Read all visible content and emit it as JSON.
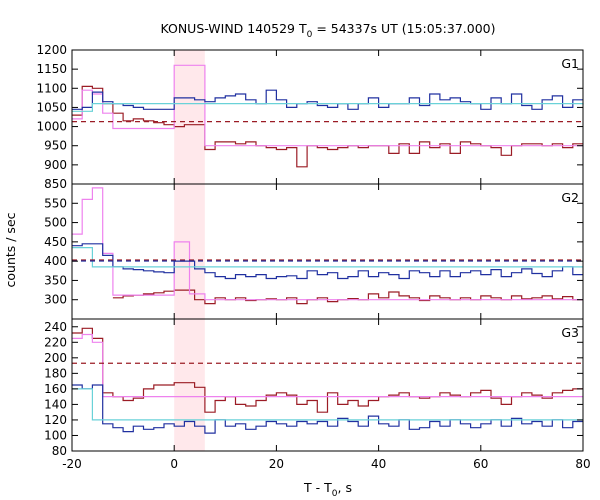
{
  "chart_data": {
    "type": "line",
    "title_main": "KONUS-WIND 140529 T",
    "title_sub": "0",
    "title_rest": " = 54337s UT (15:05:37.000)",
    "xlabel_main": "T - T",
    "xlabel_sub": "0",
    "xlabel_rest": ", s",
    "ylabel": "counts / sec",
    "xlim": [
      -20,
      80
    ],
    "x_ticks": [
      "-20",
      "0",
      "20",
      "40",
      "60",
      "80"
    ],
    "highlight_interval": [
      0,
      6
    ],
    "panels": [
      {
        "label": "G1",
        "ylim": [
          850,
          1200
        ],
        "y_ticks": [
          "850",
          "900",
          "950",
          "1000",
          "1050",
          "1100",
          "1150",
          "1200"
        ],
        "background_level": 1057,
        "threshold_level": 1013,
        "series": [
          {
            "color": "#9b1c25",
            "edges": [
              -20,
              -18,
              -16,
              -14,
              -12,
              -10,
              -8,
              -6,
              -4,
              -2,
              0,
              2,
              4,
              6,
              8,
              10,
              12,
              14,
              16,
              18,
              20,
              22,
              24,
              26,
              28,
              30,
              32,
              34,
              36,
              38,
              40,
              42,
              44,
              46,
              48,
              50,
              52,
              54,
              56,
              58,
              60,
              62,
              64,
              66,
              68,
              70,
              72,
              74,
              76,
              78,
              80
            ],
            "values": [
              1030,
              1105,
              1100,
              1060,
              1035,
              1015,
              1020,
              1015,
              1010,
              1005,
              1000,
              1005,
              1005,
              940,
              960,
              960,
              955,
              960,
              950,
              945,
              940,
              945,
              895,
              950,
              945,
              940,
              945,
              950,
              945,
              950,
              950,
              930,
              955,
              930,
              960,
              945,
              955,
              930,
              960,
              955,
              950,
              945,
              925,
              950,
              955,
              955,
              950,
              955,
              945,
              955
            ]
          },
          {
            "color": "#ee82ee",
            "edges": [
              -20,
              -18,
              -16,
              -14,
              -12,
              0,
              6,
              80
            ],
            "values": [
              1020,
              1095,
              1085,
              1035,
              995,
              1160,
              950,
              950
            ]
          },
          {
            "color": "#2030a0",
            "edges": [
              -20,
              -18,
              -16,
              -14,
              -12,
              -10,
              -8,
              -6,
              -4,
              -2,
              0,
              2,
              4,
              6,
              8,
              10,
              12,
              14,
              16,
              18,
              20,
              22,
              24,
              26,
              28,
              30,
              32,
              34,
              36,
              38,
              40,
              42,
              44,
              46,
              48,
              50,
              52,
              54,
              56,
              58,
              60,
              62,
              64,
              66,
              68,
              70,
              72,
              74,
              76,
              78,
              80
            ],
            "values": [
              1045,
              1050,
              1090,
              1065,
              1060,
              1055,
              1050,
              1045,
              1045,
              1045,
              1075,
              1075,
              1070,
              1065,
              1075,
              1080,
              1085,
              1070,
              1060,
              1095,
              1070,
              1050,
              1060,
              1065,
              1055,
              1050,
              1060,
              1045,
              1060,
              1075,
              1050,
              1060,
              1060,
              1075,
              1055,
              1085,
              1070,
              1075,
              1065,
              1060,
              1045,
              1075,
              1060,
              1085,
              1055,
              1045,
              1070,
              1080,
              1050,
              1070
            ]
          },
          {
            "color": "#6ad2d8",
            "edges": [
              -20,
              -16,
              80
            ],
            "values": [
              1040,
              1060,
              1057
            ]
          }
        ]
      },
      {
        "label": "G2",
        "ylim": [
          250,
          600
        ],
        "y_ticks": [
          "300",
          "350",
          "400",
          "450",
          "500",
          "550"
        ],
        "background_level": 385,
        "threshold_level": 403,
        "series": [
          {
            "color": "#9b1c25",
            "edges": [
              -12,
              -10,
              -8,
              -6,
              -4,
              -2,
              0,
              2,
              4,
              6,
              8,
              10,
              12,
              14,
              16,
              18,
              20,
              22,
              24,
              26,
              28,
              30,
              32,
              34,
              36,
              38,
              40,
              42,
              44,
              46,
              48,
              50,
              52,
              54,
              56,
              58,
              60,
              62,
              64,
              66,
              68,
              70,
              72,
              74,
              76,
              78,
              80
            ],
            "values": [
              305,
              310,
              312,
              315,
              318,
              322,
              325,
              325,
              300,
              290,
              305,
              300,
              305,
              298,
              300,
              302,
              300,
              305,
              290,
              300,
              305,
              295,
              300,
              303,
              300,
              315,
              305,
              320,
              310,
              305,
              298,
              310,
              305,
              300,
              305,
              300,
              310,
              305,
              300,
              310,
              302,
              305,
              310,
              302,
              308,
              300
            ]
          },
          {
            "color": "#ee82ee",
            "edges": [
              -20,
              -18,
              -16,
              -14,
              -12,
              0,
              3,
              6,
              80
            ],
            "values": [
              470,
              560,
              590,
              420,
              312,
              450,
              315,
              300,
              300
            ]
          },
          {
            "color": "#2030a0",
            "edges": [
              -20,
              -18,
              -16,
              -14,
              -12,
              -10,
              -8,
              -6,
              -4,
              -2,
              0,
              2,
              4,
              6,
              8,
              10,
              12,
              14,
              16,
              18,
              20,
              22,
              24,
              26,
              28,
              30,
              32,
              34,
              36,
              38,
              40,
              42,
              44,
              46,
              48,
              50,
              52,
              54,
              56,
              58,
              60,
              62,
              64,
              66,
              68,
              70,
              72,
              74,
              76,
              78,
              80
            ],
            "values": [
              440,
              445,
              445,
              415,
              385,
              380,
              378,
              375,
              372,
              370,
              400,
              400,
              380,
              370,
              360,
              355,
              365,
              360,
              365,
              355,
              360,
              362,
              355,
              375,
              365,
              370,
              355,
              360,
              375,
              360,
              370,
              365,
              355,
              375,
              370,
              360,
              375,
              360,
              370,
              375,
              365,
              378,
              360,
              370,
              380,
              368,
              360,
              375,
              385,
              365
            ]
          },
          {
            "color": "#6ad2d8",
            "edges": [
              -20,
              -16,
              80
            ],
            "values": [
              435,
              385,
              385
            ]
          }
        ]
      },
      {
        "label": "G3",
        "ylim": [
          80,
          250
        ],
        "y_ticks": [
          "80",
          "100",
          "120",
          "140",
          "160",
          "180",
          "200",
          "220",
          "240"
        ],
        "background_level": 120,
        "threshold_level": 193,
        "series": [
          {
            "color": "#9b1c25",
            "edges": [
              -20,
              -18,
              -16,
              -14,
              -12,
              -10,
              -8,
              -6,
              -4,
              -2,
              0,
              2,
              4,
              6,
              8,
              10,
              12,
              14,
              16,
              18,
              20,
              22,
              24,
              26,
              28,
              30,
              32,
              34,
              36,
              38,
              40,
              42,
              44,
              46,
              48,
              50,
              52,
              54,
              56,
              58,
              60,
              62,
              64,
              66,
              68,
              70,
              72,
              74,
              76,
              78,
              80
            ],
            "values": [
              232,
              238,
              225,
              155,
              150,
              145,
              148,
              160,
              165,
              165,
              168,
              168,
              162,
              130,
              145,
              150,
              140,
              138,
              145,
              152,
              155,
              152,
              140,
              145,
              130,
              155,
              140,
              145,
              138,
              145,
              150,
              152,
              155,
              150,
              148,
              150,
              155,
              152,
              150,
              155,
              158,
              148,
              140,
              150,
              155,
              152,
              148,
              155,
              158,
              160
            ]
          },
          {
            "color": "#ee82ee",
            "edges": [
              -20,
              -18,
              -16,
              -14,
              80
            ],
            "values": [
              225,
              230,
              220,
              150,
              150
            ]
          },
          {
            "color": "#2030a0",
            "edges": [
              -20,
              -18,
              -16,
              -14,
              -12,
              -10,
              -8,
              -6,
              -4,
              -2,
              0,
              2,
              4,
              6,
              8,
              10,
              12,
              14,
              16,
              18,
              20,
              22,
              24,
              26,
              28,
              30,
              32,
              34,
              36,
              38,
              40,
              42,
              44,
              46,
              48,
              50,
              52,
              54,
              56,
              58,
              60,
              62,
              64,
              66,
              68,
              70,
              72,
              74,
              76,
              78,
              80
            ],
            "values": [
              165,
              160,
              165,
              115,
              110,
              105,
              112,
              108,
              110,
              115,
              112,
              118,
              112,
              103,
              120,
              112,
              115,
              108,
              112,
              118,
              115,
              112,
              118,
              115,
              118,
              112,
              122,
              118,
              112,
              125,
              115,
              112,
              120,
              108,
              110,
              118,
              112,
              120,
              115,
              110,
              115,
              120,
              112,
              122,
              115,
              118,
              112,
              120,
              110,
              118
            ]
          },
          {
            "color": "#6ad2d8",
            "edges": [
              -20,
              -16,
              80
            ],
            "values": [
              160,
              120,
              120
            ]
          }
        ]
      }
    ]
  }
}
